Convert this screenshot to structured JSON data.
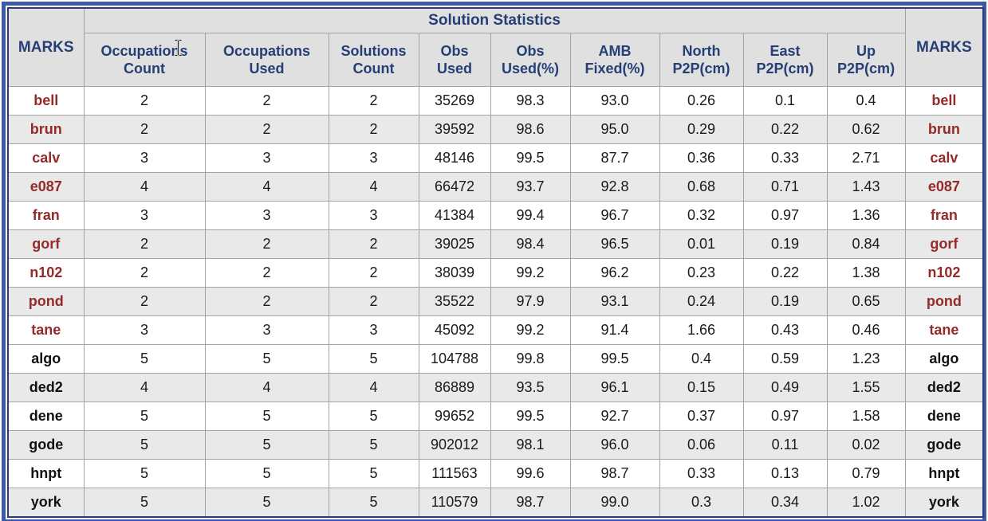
{
  "title": "Solution Statistics",
  "marks_column_header": "MARKS",
  "columns": [
    "Occupations\nCount",
    "Occupations\nUsed",
    "Solutions\nCount",
    "Obs\nUsed",
    "Obs\nUsed(%)",
    "AMB\nFixed(%)",
    "North\nP2P(cm)",
    "East\nP2P(cm)",
    "Up\nP2P(cm)"
  ],
  "rows": [
    {
      "mark": "bell",
      "group": "red",
      "values": [
        "2",
        "2",
        "2",
        "35269",
        "98.3",
        "93.0",
        "0.26",
        "0.1",
        "0.4"
      ]
    },
    {
      "mark": "brun",
      "group": "red",
      "values": [
        "2",
        "2",
        "2",
        "39592",
        "98.6",
        "95.0",
        "0.29",
        "0.22",
        "0.62"
      ]
    },
    {
      "mark": "calv",
      "group": "red",
      "values": [
        "3",
        "3",
        "3",
        "48146",
        "99.5",
        "87.7",
        "0.36",
        "0.33",
        "2.71"
      ]
    },
    {
      "mark": "e087",
      "group": "red",
      "values": [
        "4",
        "4",
        "4",
        "66472",
        "93.7",
        "92.8",
        "0.68",
        "0.71",
        "1.43"
      ]
    },
    {
      "mark": "fran",
      "group": "red",
      "values": [
        "3",
        "3",
        "3",
        "41384",
        "99.4",
        "96.7",
        "0.32",
        "0.97",
        "1.36"
      ]
    },
    {
      "mark": "gorf",
      "group": "red",
      "values": [
        "2",
        "2",
        "2",
        "39025",
        "98.4",
        "96.5",
        "0.01",
        "0.19",
        "0.84"
      ]
    },
    {
      "mark": "n102",
      "group": "red",
      "values": [
        "2",
        "2",
        "2",
        "38039",
        "99.2",
        "96.2",
        "0.23",
        "0.22",
        "1.38"
      ]
    },
    {
      "mark": "pond",
      "group": "red",
      "values": [
        "2",
        "2",
        "2",
        "35522",
        "97.9",
        "93.1",
        "0.24",
        "0.19",
        "0.65"
      ]
    },
    {
      "mark": "tane",
      "group": "red",
      "values": [
        "3",
        "3",
        "3",
        "45092",
        "99.2",
        "91.4",
        "1.66",
        "0.43",
        "0.46"
      ]
    },
    {
      "mark": "algo",
      "group": "black",
      "values": [
        "5",
        "5",
        "5",
        "104788",
        "99.8",
        "99.5",
        "0.4",
        "0.59",
        "1.23"
      ]
    },
    {
      "mark": "ded2",
      "group": "black",
      "values": [
        "4",
        "4",
        "4",
        "86889",
        "93.5",
        "96.1",
        "0.15",
        "0.49",
        "1.55"
      ]
    },
    {
      "mark": "dene",
      "group": "black",
      "values": [
        "5",
        "5",
        "5",
        "99652",
        "99.5",
        "92.7",
        "0.37",
        "0.97",
        "1.58"
      ]
    },
    {
      "mark": "gode",
      "group": "black",
      "values": [
        "5",
        "5",
        "5",
        "902012",
        "98.1",
        "96.0",
        "0.06",
        "0.11",
        "0.02"
      ]
    },
    {
      "mark": "hnpt",
      "group": "black",
      "values": [
        "5",
        "5",
        "5",
        "111563",
        "99.6",
        "98.7",
        "0.33",
        "0.13",
        "0.79"
      ]
    },
    {
      "mark": "york",
      "group": "black",
      "values": [
        "5",
        "5",
        "5",
        "110579",
        "98.7",
        "99.0",
        "0.3",
        "0.34",
        "1.02"
      ]
    }
  ],
  "cursor": {
    "icon": "text-ibeam-cursor"
  },
  "colors": {
    "header_text": "#253E75",
    "red_mark": "#942A2A",
    "black_mark": "#111111",
    "frame_blue": "#3D5AA8",
    "table_border_navy": "#253E75",
    "row_shade": "#E9E9E9",
    "header_bg": "#E0E0E0",
    "grid_line": "#A3A3A3"
  }
}
